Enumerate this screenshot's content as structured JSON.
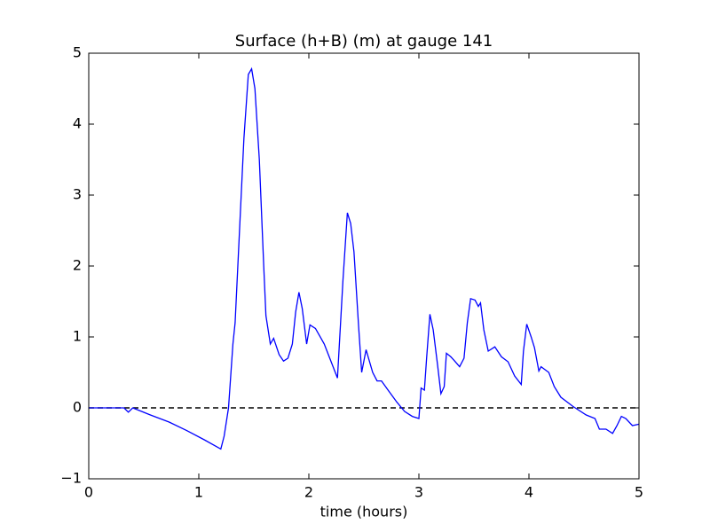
{
  "chart_data": {
    "type": "line",
    "title": "Surface (h+B) (m) at gauge 141",
    "xlabel": "time (hours)",
    "x": [
      0,
      0.32,
      0.36,
      0.4,
      0.48,
      0.56,
      0.73,
      0.89,
      1.05,
      1.2,
      1.23,
      1.27,
      1.31,
      1.33,
      1.37,
      1.41,
      1.45,
      1.48,
      1.51,
      1.55,
      1.59,
      1.61,
      1.65,
      1.68,
      1.73,
      1.77,
      1.81,
      1.85,
      1.88,
      1.91,
      1.94,
      1.98,
      2.01,
      2.06,
      2.14,
      2.19,
      2.26,
      2.31,
      2.35,
      2.38,
      2.41,
      2.45,
      2.48,
      2.52,
      2.58,
      2.62,
      2.66,
      2.72,
      2.8,
      2.87,
      2.94,
      3.0,
      3.02,
      3.05,
      3.07,
      3.1,
      3.13,
      3.17,
      3.2,
      3.23,
      3.25,
      3.29,
      3.32,
      3.37,
      3.41,
      3.44,
      3.47,
      3.51,
      3.54,
      3.56,
      3.59,
      3.63,
      3.69,
      3.75,
      3.81,
      3.87,
      3.93,
      3.95,
      3.98,
      4.02,
      4.05,
      4.09,
      4.11,
      4.18,
      4.23,
      4.29,
      4.4,
      4.52,
      4.6,
      4.64,
      4.7,
      4.76,
      4.8,
      4.84,
      4.88,
      4.94,
      5.0
    ],
    "series": [
      {
        "color": "#0000ff",
        "values": [
          0,
          0,
          -0.06,
          0,
          -0.05,
          -0.1,
          -0.2,
          -0.32,
          -0.45,
          -0.58,
          -0.4,
          0,
          0.9,
          1.2,
          2.5,
          3.8,
          4.7,
          4.78,
          4.5,
          3.5,
          2.0,
          1.3,
          0.9,
          0.98,
          0.75,
          0.66,
          0.7,
          0.9,
          1.35,
          1.63,
          1.4,
          0.9,
          1.17,
          1.12,
          0.9,
          0.7,
          0.42,
          1.8,
          2.75,
          2.6,
          2.2,
          1.2,
          0.5,
          0.82,
          0.5,
          0.38,
          0.38,
          0.25,
          0.08,
          -0.05,
          -0.12,
          -0.15,
          0.28,
          0.25,
          0.7,
          1.32,
          1.1,
          0.6,
          0.2,
          0.3,
          0.77,
          0.72,
          0.67,
          0.58,
          0.7,
          1.2,
          1.54,
          1.52,
          1.43,
          1.48,
          1.1,
          0.8,
          0.86,
          0.72,
          0.65,
          0.45,
          0.33,
          0.8,
          1.18,
          1.0,
          0.85,
          0.52,
          0.58,
          0.5,
          0.3,
          0.15,
          0.02,
          -0.1,
          -0.15,
          -0.3,
          -0.3,
          -0.36,
          -0.25,
          -0.12,
          -0.15,
          -0.25,
          -0.23
        ]
      }
    ],
    "hline": {
      "value": 0,
      "color": "#000000"
    },
    "xlim": [
      0,
      5
    ],
    "xticks": [
      0,
      1,
      2,
      3,
      4,
      5
    ],
    "ylim": [
      -1,
      5
    ],
    "yticks": [
      {
        "value": -1,
        "label": "−1"
      },
      0,
      1,
      2,
      3,
      4,
      5
    ]
  }
}
